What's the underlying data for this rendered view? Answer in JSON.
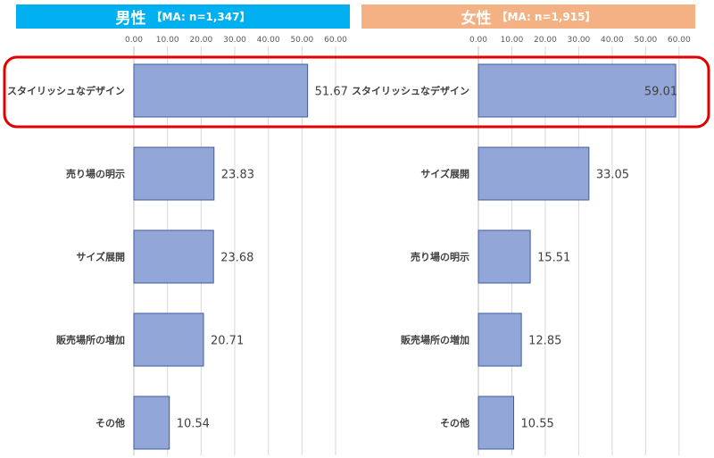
{
  "colors": {
    "male_header": "#00b0f0",
    "female_header": "#f4b183",
    "bar_fill": "#93a6d8",
    "bar_stroke": "#3e5aa0",
    "highlight": "#e00000",
    "label_text": "#404040",
    "tick_text": "#595959"
  },
  "chart_data": [
    {
      "type": "bar",
      "orientation": "horizontal",
      "title": "男性",
      "subtitle": "【MA: n=1,347】",
      "categories": [
        "スタイリッシュなデザイン",
        "売り場の明示",
        "サイズ展開",
        "販売場所の増加",
        "その他"
      ],
      "values": [
        51.67,
        23.83,
        23.68,
        20.71,
        10.54
      ],
      "value_labels": [
        "51.67",
        "23.83",
        "23.68",
        "20.71",
        "10.54"
      ],
      "xlim": [
        0,
        60
      ],
      "ticks": [
        "0.00",
        "10.00",
        "20.00",
        "30.00",
        "40.00",
        "50.00",
        "60.00"
      ],
      "tick_values": [
        0,
        10,
        20,
        30,
        40,
        50,
        60
      ],
      "grid": true
    },
    {
      "type": "bar",
      "orientation": "horizontal",
      "title": "女性",
      "subtitle": "【MA: n=1,915】",
      "categories": [
        "スタイリッシュなデザイン",
        "サイズ展開",
        "売り場の明示",
        "販売場所の増加",
        "その他"
      ],
      "values": [
        59.01,
        33.05,
        15.51,
        12.85,
        10.55
      ],
      "value_labels": [
        "59.01",
        "33.05",
        "15.51",
        "12.85",
        "10.55"
      ],
      "xlim": [
        0,
        60
      ],
      "ticks": [
        "0.00",
        "10.00",
        "20.00",
        "30.00",
        "40.00",
        "50.00",
        "60.00"
      ],
      "tick_values": [
        0,
        10,
        20,
        30,
        40,
        50,
        60
      ],
      "grid": true
    }
  ]
}
